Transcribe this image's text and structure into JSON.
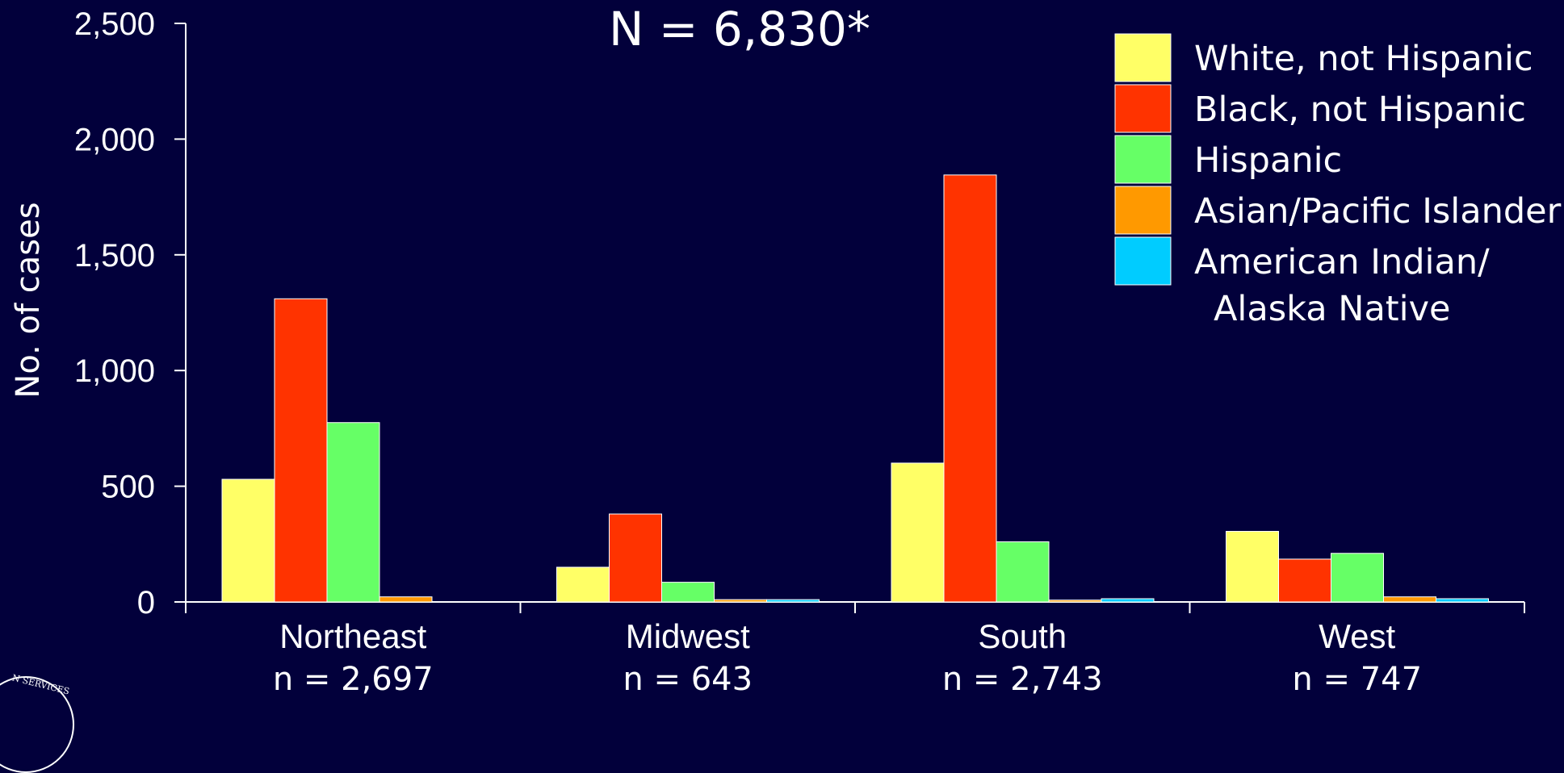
{
  "chart_data": {
    "type": "bar",
    "title": "N = 6,830*",
    "xlabel": "",
    "ylabel": "No. of cases",
    "ylim": [
      0,
      2500
    ],
    "yticks": [
      0,
      500,
      1000,
      1500,
      2000,
      2500
    ],
    "ytick_labels": [
      "0",
      "500",
      "1,000",
      "1,500",
      "2,000",
      "2,500"
    ],
    "categories": [
      "Northeast",
      "Midwest",
      "South",
      "West"
    ],
    "category_counts": [
      "n = 2,697",
      "n = 643",
      "n = 2,743",
      "n = 747"
    ],
    "grid": false,
    "legend_position": "top-right",
    "series": [
      {
        "name": "White, not Hispanic",
        "color": "#ffff66",
        "values": [
          530,
          150,
          600,
          305
        ]
      },
      {
        "name": "Black, not Hispanic",
        "color": "#ff3300",
        "values": [
          1310,
          380,
          1845,
          185
        ]
      },
      {
        "name": "Hispanic",
        "color": "#66ff66",
        "values": [
          775,
          85,
          260,
          210
        ]
      },
      {
        "name": "Asian/Pacific Islander",
        "color": "#ff9900",
        "values": [
          22,
          10,
          8,
          22
        ]
      },
      {
        "name": "American Indian/ Alaska Native",
        "color": "#00ccff",
        "values": [
          0,
          10,
          14,
          14
        ]
      }
    ],
    "legend_lines": [
      [
        "White, not Hispanic"
      ],
      [
        "Black, not Hispanic"
      ],
      [
        "Hispanic"
      ],
      [
        "Asian/Pacific Islander"
      ],
      [
        "American Indian/",
        "Alaska Native"
      ]
    ]
  },
  "logo": {
    "text": "N SERVICES"
  },
  "colors": {
    "background": "#02003b",
    "axis": "#ffffff",
    "text": "#ffffff"
  }
}
